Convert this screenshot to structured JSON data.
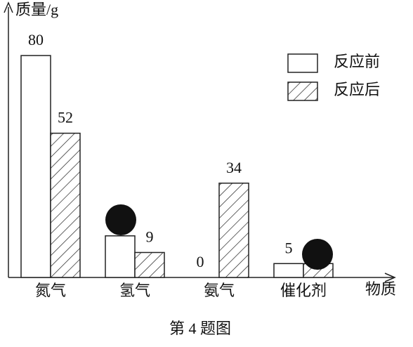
{
  "chart_data": {
    "type": "bar",
    "title": "质量/g",
    "x_label": "物质",
    "caption": "第 4 题图",
    "categories": [
      "氮气",
      "氢气",
      "氨气",
      "催化剂"
    ],
    "series": [
      {
        "name": "反应前",
        "color": "#ffffff",
        "hatch": false,
        "values": [
          80,
          15,
          0,
          5
        ],
        "value_labels": [
          "80",
          null,
          "0",
          "5"
        ]
      },
      {
        "name": "反应后",
        "color": "#ffffff",
        "hatch": true,
        "values": [
          52,
          9,
          34,
          5
        ],
        "value_labels": [
          "52",
          "9",
          "34",
          null
        ]
      }
    ],
    "ylim": [
      0,
      98
    ],
    "grid": false,
    "legend": "upper right"
  }
}
